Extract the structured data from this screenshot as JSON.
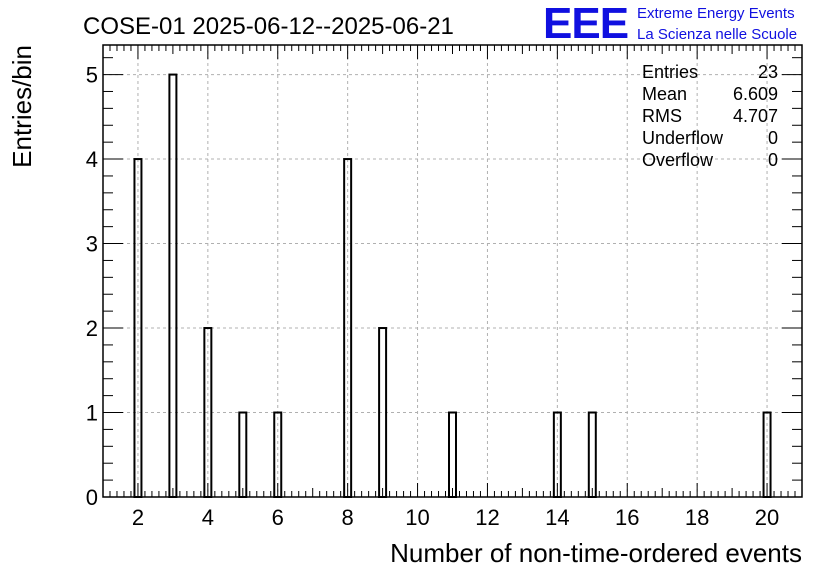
{
  "header": {
    "title": "COSE-01 2025-06-12--2025-06-21",
    "logo": "EEE",
    "logo_line1": "Extreme Energy Events",
    "logo_line2": "La Scienza nelle Scuole",
    "logo_color": "#1010e0"
  },
  "stats": {
    "rows": [
      {
        "label": "Entries",
        "value": "23"
      },
      {
        "label": "Mean",
        "value": "6.609"
      },
      {
        "label": "RMS",
        "value": "4.707"
      },
      {
        "label": "Underflow",
        "value": "0"
      },
      {
        "label": "Overflow",
        "value": "0"
      }
    ]
  },
  "chart_data": {
    "type": "bar",
    "title": "COSE-01 2025-06-12--2025-06-21",
    "xlabel": "Number of non-time-ordered events",
    "ylabel": "Entries/bin",
    "xlim": [
      1,
      21
    ],
    "ylim": [
      0,
      5.35
    ],
    "grid": true,
    "bin_width": 0.2,
    "x_ticks": [
      2,
      4,
      6,
      8,
      10,
      12,
      14,
      16,
      18,
      20
    ],
    "y_ticks": [
      0,
      1,
      2,
      3,
      4,
      5
    ],
    "bins": [
      {
        "x": 2,
        "value": 4
      },
      {
        "x": 3,
        "value": 5
      },
      {
        "x": 4,
        "value": 2
      },
      {
        "x": 5,
        "value": 1
      },
      {
        "x": 6,
        "value": 1
      },
      {
        "x": 8,
        "value": 4
      },
      {
        "x": 9,
        "value": 2
      },
      {
        "x": 11,
        "value": 1
      },
      {
        "x": 14,
        "value": 1
      },
      {
        "x": 15,
        "value": 1
      },
      {
        "x": 20,
        "value": 1
      }
    ]
  }
}
